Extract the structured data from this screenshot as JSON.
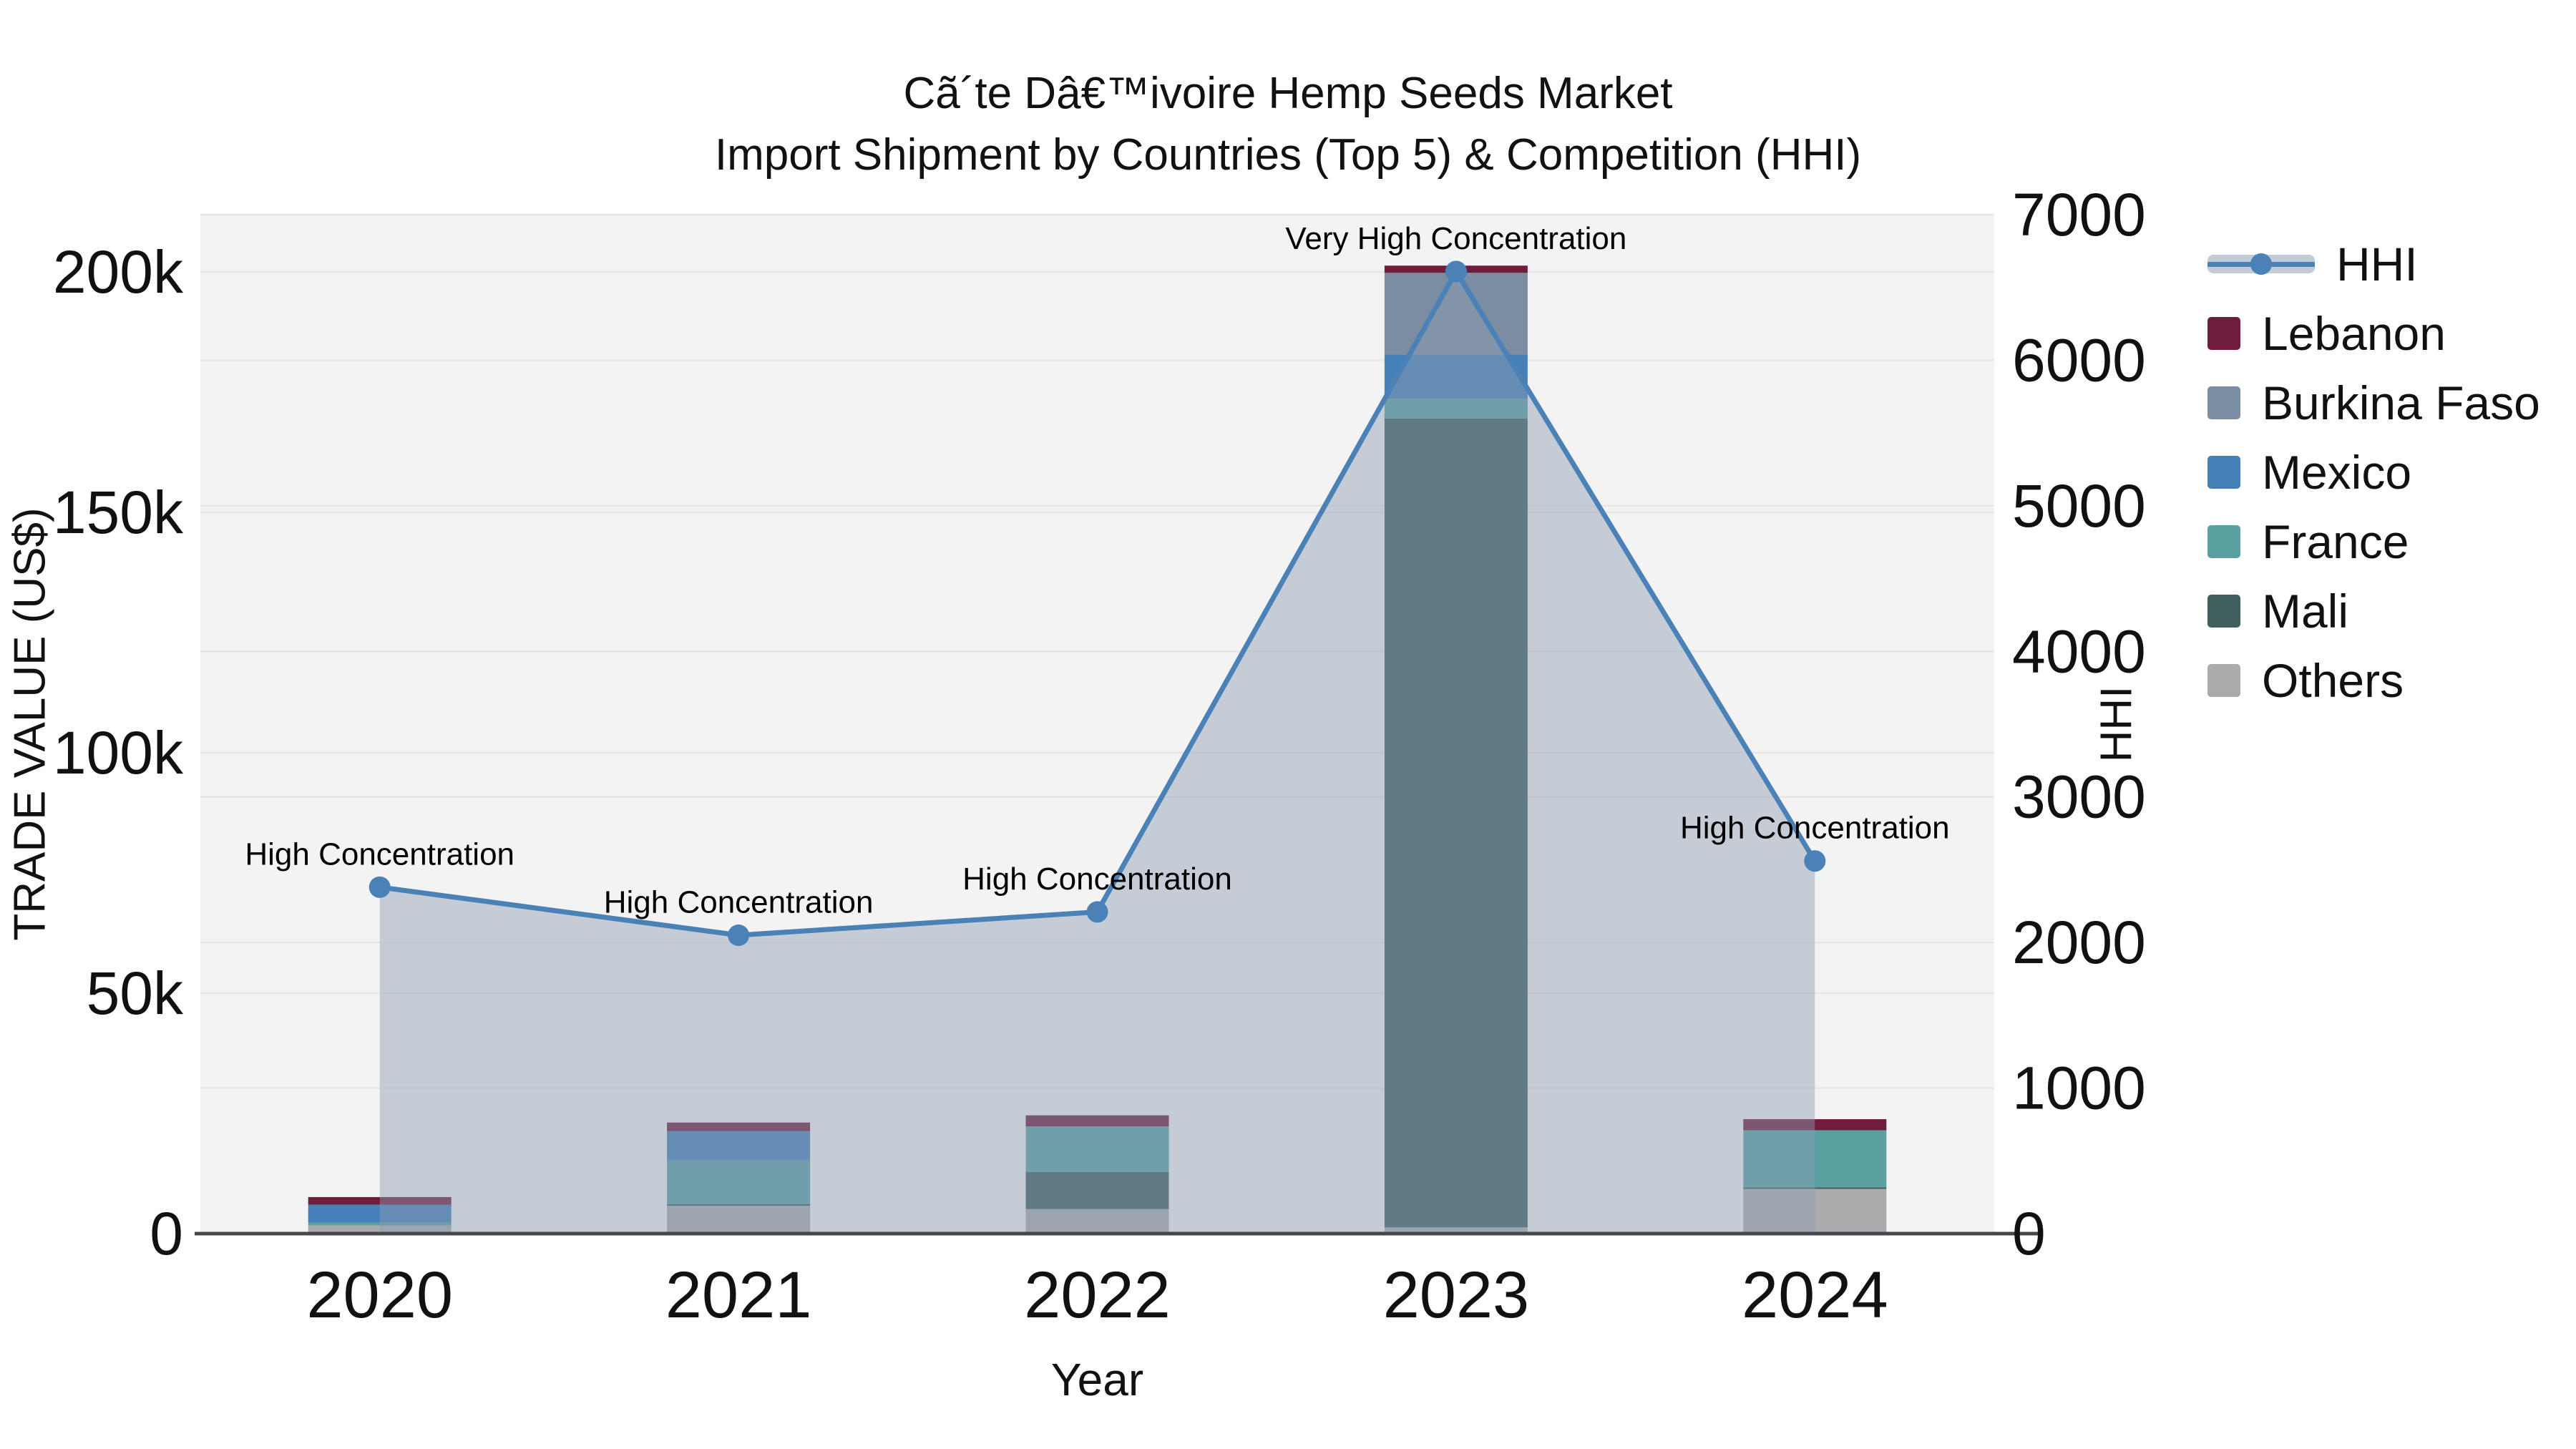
{
  "title": {
    "line1": "Cã´te Dâ€™ivoire Hemp Seeds Market",
    "line2": "Import Shipment by Countries (Top 5) & Competition (HHI)"
  },
  "axes": {
    "x_title": "Year",
    "y_left_title": "TRADE VALUE (US$)",
    "y_right_title": "HHI",
    "y_left_tick_labels": [
      "0",
      "50k",
      "100k",
      "150k",
      "200k"
    ],
    "y_left_tick_values": [
      0,
      50000,
      100000,
      150000,
      200000
    ],
    "y_right_tick_labels": [
      "0",
      "1000",
      "2000",
      "3000",
      "4000",
      "5000",
      "6000",
      "7000"
    ],
    "y_right_tick_values": [
      0,
      1000,
      2000,
      3000,
      4000,
      5000,
      6000,
      7000
    ]
  },
  "chart_data": {
    "type": "bar+line",
    "categories": [
      "2020",
      "2021",
      "2022",
      "2023",
      "2024"
    ],
    "series": [
      {
        "name": "Lebanon",
        "values": [
          1600,
          1800,
          2300,
          1500,
          2300
        ]
      },
      {
        "name": "Burkina Faso",
        "values": [
          0,
          0,
          0,
          17000,
          0
        ]
      },
      {
        "name": "Mexico",
        "values": [
          3700,
          6100,
          0,
          9200,
          0
        ]
      },
      {
        "name": "France",
        "values": [
          600,
          9100,
          9500,
          4100,
          11900
        ]
      },
      {
        "name": "Mali",
        "values": [
          0,
          300,
          7700,
          168200,
          300
        ]
      },
      {
        "name": "Others",
        "values": [
          1700,
          5800,
          5100,
          1300,
          9300
        ]
      }
    ],
    "line_series": {
      "name": "HHI",
      "values": [
        2380,
        2050,
        2210,
        6610,
        2560
      ]
    },
    "annotations": [
      {
        "x": "2020",
        "text": "High Concentration"
      },
      {
        "x": "2021",
        "text": "High Concentration"
      },
      {
        "x": "2022",
        "text": "High Concentration"
      },
      {
        "x": "2023",
        "text": "Very High Concentration"
      },
      {
        "x": "2024",
        "text": "High Concentration"
      }
    ],
    "ylim_left": [
      0,
      211900
    ],
    "ylim_right": [
      0,
      7000
    ],
    "title": "Cã´te Dâ€™ivoire Hemp Seeds Market Import Shipment by Countries (Top 5) & Competition (HHI)",
    "xlabel": "Year",
    "ylabel_left": "TRADE VALUE (US$)",
    "ylabel_right": "HHI",
    "grid": true,
    "legend_position": "right"
  },
  "colors": {
    "hhi_line": "#4a82b8",
    "hhi_area": "rgba(141,157,180,0.45)",
    "Lebanon": "#701c3c",
    "Burkina Faso": "#7b8da0",
    "Mexico": "#4580b8",
    "France": "#5aa0a0",
    "Mali": "#3f5e5e",
    "Others": "#a9abad",
    "plot_bg": "#f2f3f2",
    "grid_line": "#e5e7e7",
    "axis_line": "#44484c",
    "text": "#111111"
  },
  "legend": {
    "items": [
      {
        "label": "HHI",
        "kind": "line"
      },
      {
        "label": "Lebanon",
        "kind": "swatch"
      },
      {
        "label": "Burkina Faso",
        "kind": "swatch"
      },
      {
        "label": "Mexico",
        "kind": "swatch"
      },
      {
        "label": "France",
        "kind": "swatch"
      },
      {
        "label": "Mali",
        "kind": "swatch"
      },
      {
        "label": "Others",
        "kind": "swatch"
      }
    ]
  }
}
